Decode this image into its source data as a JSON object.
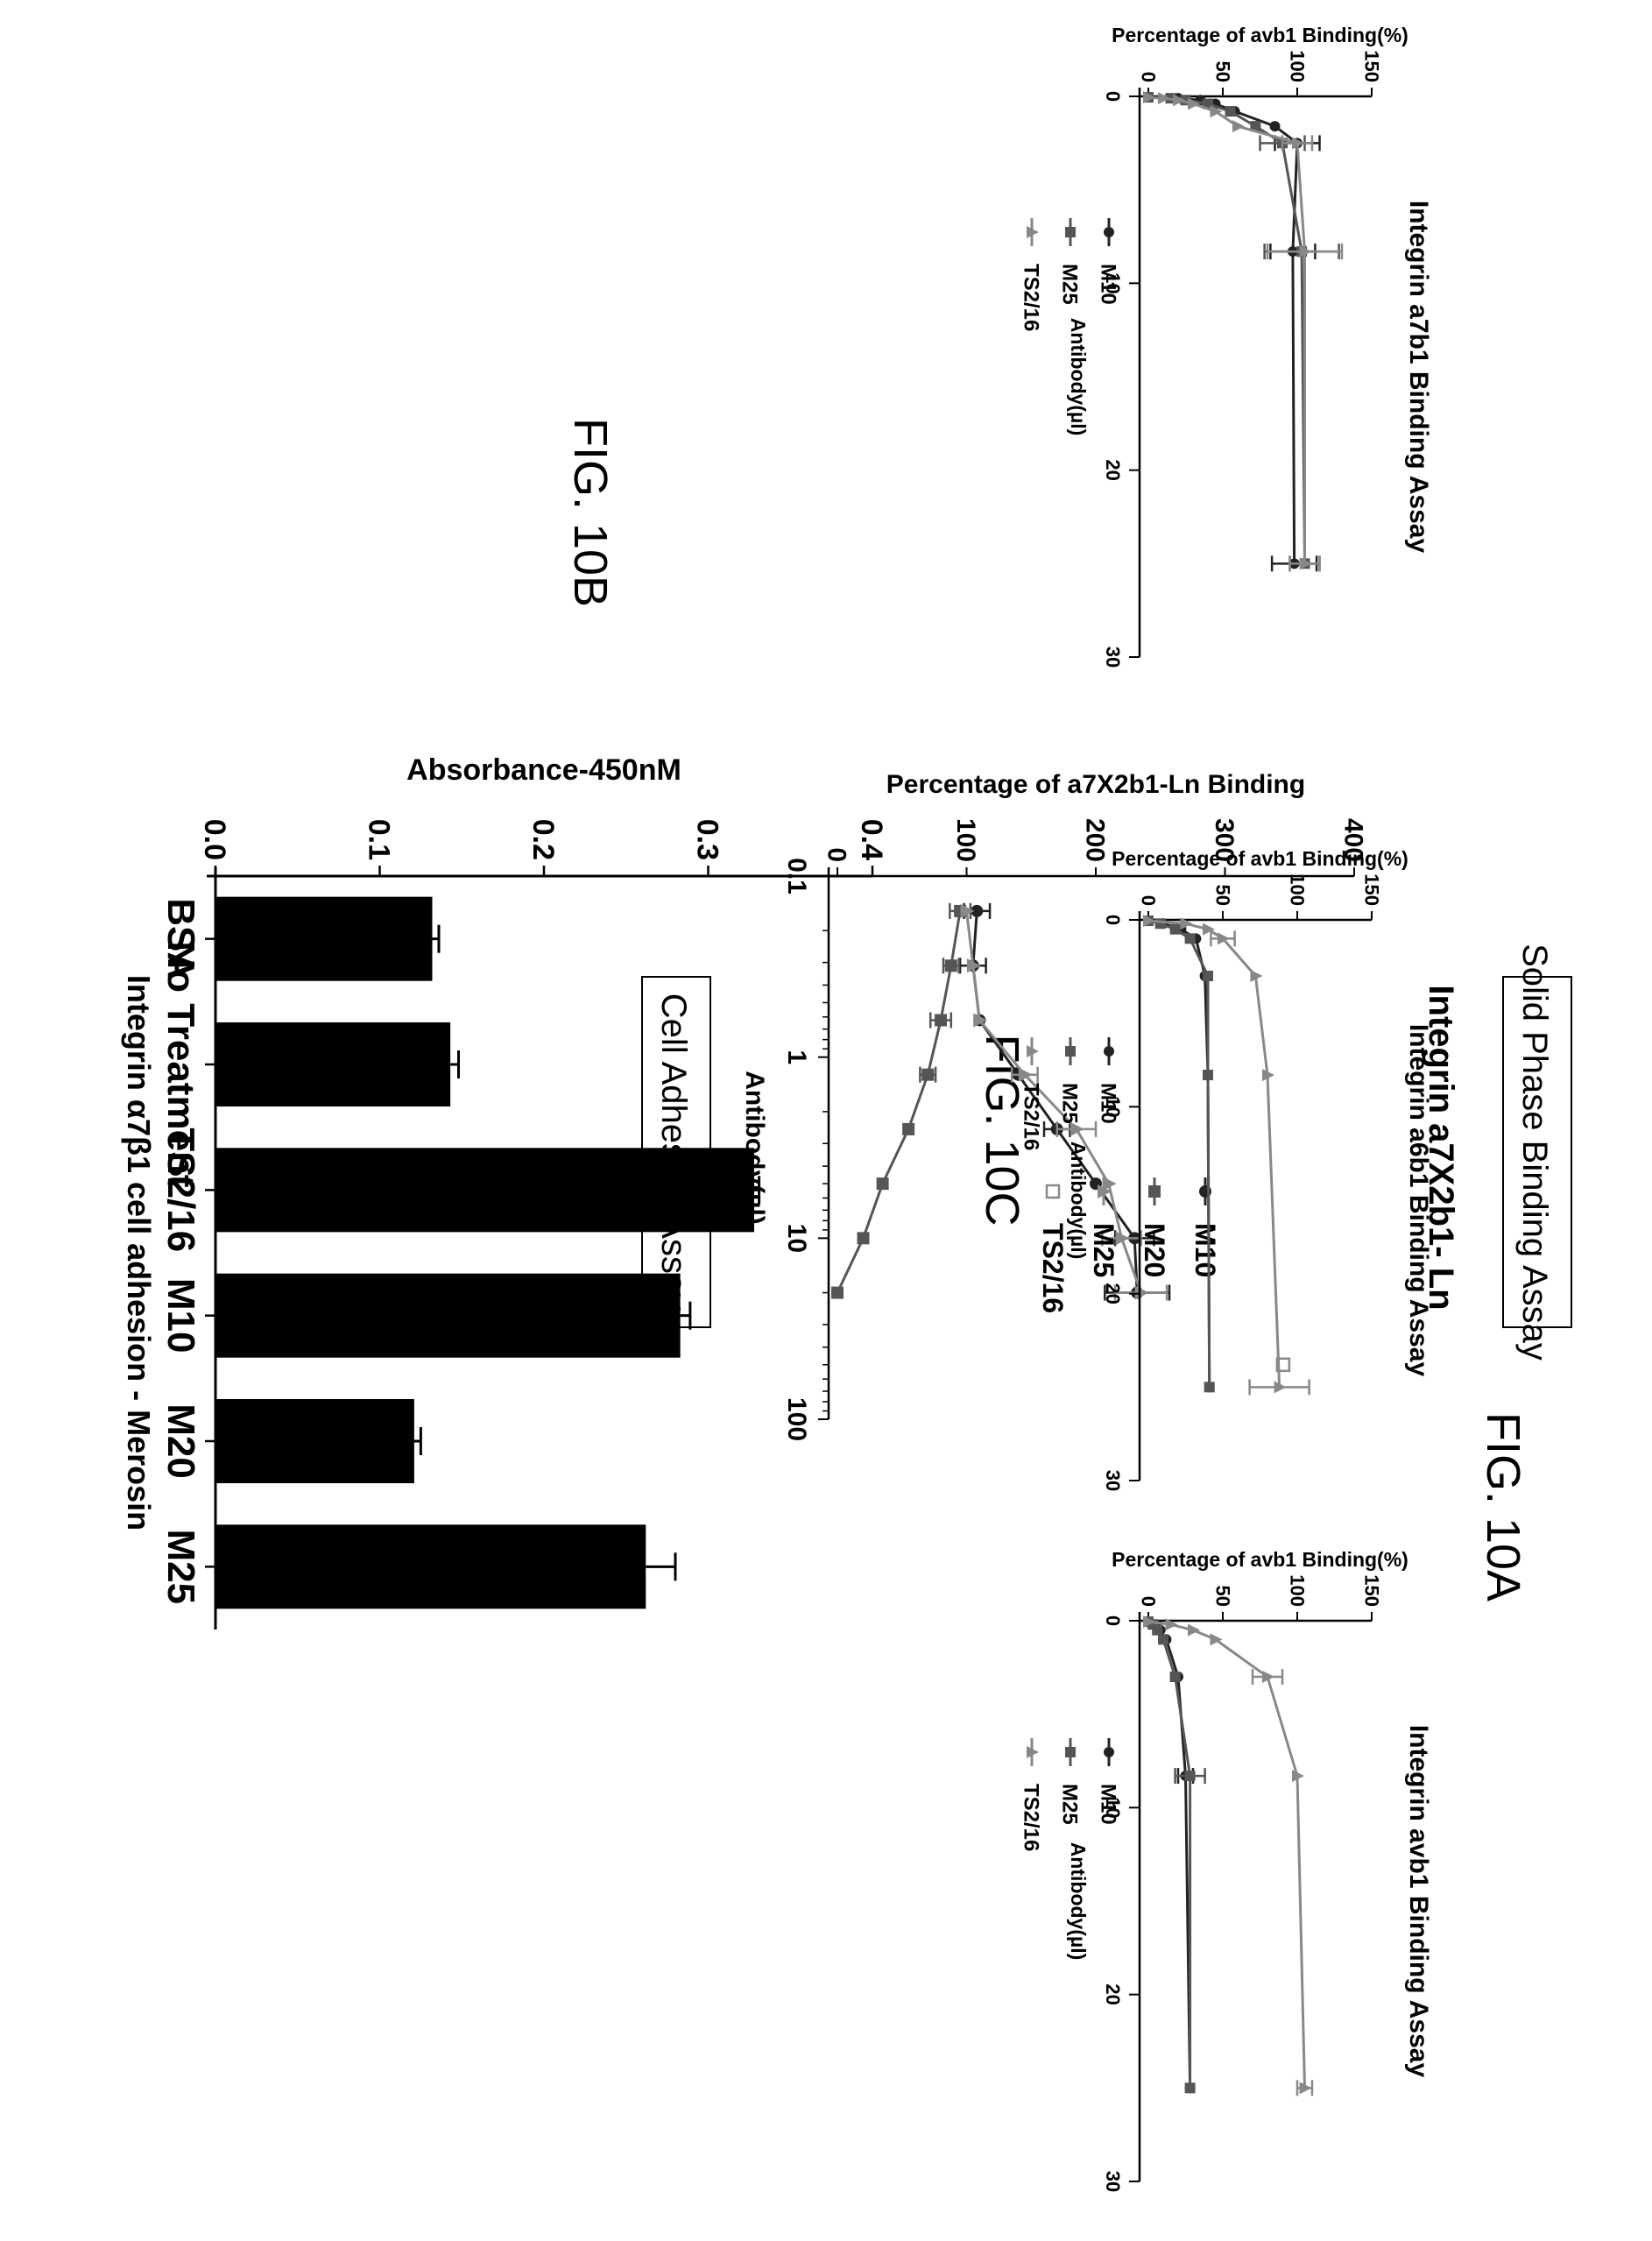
{
  "figures": {
    "fig_10a": "FIG. 10A",
    "fig_10b": "FIG. 10B",
    "fig_10c": "FIG. 10C"
  },
  "boxes": {
    "solid_phase": "Solid Phase Binding Assay",
    "cell_adhesion": "Cell Adhesion Assay"
  },
  "chart_data": [
    {
      "id": "10A",
      "type": "line",
      "title": "Integrin a7X2b1- Ln",
      "xlabel": "Antibody(µl)",
      "ylabel": "Percentage of a7X2b1-Ln Binding",
      "xscale": "log",
      "xlim": [
        0.1,
        100
      ],
      "ylim": [
        0,
        400
      ],
      "xticks": [
        "0.1",
        "1",
        "10",
        "100"
      ],
      "yticks": [
        "0",
        "100",
        "200",
        "300",
        "400"
      ],
      "legend": [
        "M10",
        "M20",
        "M25",
        "TS2/16"
      ],
      "series": [
        {
          "name": "M10",
          "color": "#222222",
          "marker": "circle",
          "x": [
            0.156,
            0.3125,
            0.625,
            1.25,
            2.5,
            5,
            10,
            20
          ],
          "y": [
            108,
            105,
            110,
            140,
            170,
            200,
            230,
            232
          ],
          "err": [
            10,
            10,
            0,
            0,
            10,
            0,
            15,
            25
          ]
        },
        {
          "name": "M20",
          "color": "#555555",
          "marker": "square",
          "x": [
            0.156,
            0.3125,
            0.625,
            1.25,
            2.5,
            5,
            10,
            20
          ],
          "y": [
            95,
            88,
            80,
            70,
            55,
            35,
            20,
            0
          ],
          "err": [
            8,
            6,
            8,
            6,
            0,
            0,
            0,
            0
          ]
        },
        {
          "name": "M25",
          "color": "#888888",
          "marker": "triangle",
          "x": [
            0.156,
            0.3125,
            0.625,
            1.25,
            2.5,
            5,
            10,
            20
          ],
          "y": [
            100,
            105,
            110,
            145,
            185,
            210,
            220,
            235
          ],
          "err": [
            0,
            0,
            0,
            10,
            15,
            0,
            15,
            20
          ]
        },
        {
          "name": "TS2/16",
          "color": "#888888",
          "marker": "open-square",
          "x": [
            50
          ],
          "y": [
            345
          ],
          "err": [
            0
          ]
        }
      ]
    },
    {
      "id": "10B",
      "type": "bar",
      "title": "Integrin α7β1 cell adhesion - Merosin",
      "ylabel": "Absorbance-450nM",
      "ylim": [
        0,
        0.4
      ],
      "yticks": [
        "0.0",
        "0.1",
        "0.2",
        "0.3",
        "0.4"
      ],
      "categories": [
        "BSA",
        "No Treatment",
        "TS2/16",
        "M10",
        "M20",
        "M25"
      ],
      "values": [
        0.132,
        0.143,
        0.328,
        0.283,
        0.121,
        0.262
      ],
      "err": [
        0.004,
        0.005,
        0.003,
        0.006,
        0.004,
        0.018
      ]
    },
    {
      "id": "10C-1",
      "type": "line",
      "title": "Integrin a7b1 Binding Assay",
      "xlabel": "Antibody(µl)",
      "ylabel": "Percentage of avb1 Binding(%)",
      "xlim": [
        0,
        30
      ],
      "ylim": [
        0,
        150
      ],
      "xticks": [
        "0",
        "10",
        "20",
        "30"
      ],
      "yticks": [
        "0",
        "50",
        "100",
        "150"
      ],
      "legend": [
        "M10",
        "M25",
        "TS2/16"
      ],
      "series": [
        {
          "name": "M10",
          "color": "#222222",
          "marker": "circle",
          "x": [
            0.05,
            0.1,
            0.2,
            0.4,
            0.8,
            1.6,
            2.5,
            8.3,
            25
          ],
          "y": [
            0,
            20,
            35,
            45,
            58,
            85,
            100,
            97,
            98
          ],
          "err": [
            0,
            0,
            0,
            0,
            0,
            0,
            15,
            15,
            15
          ]
        },
        {
          "name": "M25",
          "color": "#555555",
          "marker": "square",
          "x": [
            0.05,
            0.1,
            0.2,
            0.4,
            0.8,
            1.6,
            2.5,
            8.3,
            25
          ],
          "y": [
            0,
            15,
            25,
            40,
            55,
            72,
            90,
            103,
            105
          ],
          "err": [
            0,
            0,
            0,
            0,
            0,
            0,
            15,
            25,
            10
          ]
        },
        {
          "name": "TS2/16",
          "color": "#888888",
          "marker": "triangle",
          "x": [
            0.05,
            0.1,
            0.2,
            0.4,
            0.8,
            1.6,
            2.5,
            8.3,
            25
          ],
          "y": [
            0,
            10,
            20,
            30,
            45,
            60,
            100,
            105,
            105
          ],
          "err": [
            0,
            0,
            0,
            0,
            0,
            0,
            10,
            25,
            10
          ]
        }
      ]
    },
    {
      "id": "10C-2",
      "type": "line",
      "title": "Integrin a6b1 Binding Assay",
      "xlabel": "Antibody(µl)",
      "ylabel": "Percentage of avb1 Binding(%)",
      "xlim": [
        0,
        30
      ],
      "ylim": [
        0,
        150
      ],
      "xticks": [
        "0",
        "10",
        "20",
        "30"
      ],
      "yticks": [
        "0",
        "50",
        "100",
        "150"
      ],
      "legend": [
        "M10",
        "M25",
        "TS2/16"
      ],
      "series": [
        {
          "name": "M10",
          "color": "#222222",
          "marker": "circle",
          "x": [
            0.05,
            0.2,
            0.5,
            1,
            3,
            8.3,
            25
          ],
          "y": [
            0,
            10,
            22,
            32,
            38,
            40,
            41
          ],
          "err": [
            0,
            0,
            0,
            0,
            0,
            0,
            0
          ]
        },
        {
          "name": "M25",
          "color": "#555555",
          "marker": "square",
          "x": [
            0.05,
            0.2,
            0.5,
            1,
            3,
            8.3,
            25
          ],
          "y": [
            0,
            8,
            18,
            28,
            40,
            40,
            41
          ],
          "err": [
            0,
            0,
            0,
            0,
            0,
            0,
            0
          ]
        },
        {
          "name": "TS2/16",
          "color": "#888888",
          "marker": "triangle",
          "x": [
            0.05,
            0.2,
            0.5,
            1,
            3,
            8.3,
            25
          ],
          "y": [
            0,
            25,
            40,
            50,
            72,
            80,
            88
          ],
          "err": [
            0,
            0,
            0,
            8,
            0,
            0,
            20
          ]
        }
      ]
    },
    {
      "id": "10C-3",
      "type": "line",
      "title": "Integrin avb1 Binding Assay",
      "xlabel": "Antibody(µl)",
      "ylabel": "Percentage of avb1 Binding(%)",
      "xlim": [
        0,
        30
      ],
      "ylim": [
        0,
        150
      ],
      "xticks": [
        "0",
        "10",
        "20",
        "30"
      ],
      "yticks": [
        "0",
        "50",
        "100",
        "150"
      ],
      "legend": [
        "M10",
        "M25",
        "TS2/16"
      ],
      "series": [
        {
          "name": "M10",
          "color": "#222222",
          "marker": "circle",
          "x": [
            0.05,
            0.2,
            0.5,
            1,
            3,
            8.3,
            25
          ],
          "y": [
            0,
            5,
            8,
            12,
            20,
            25,
            28
          ],
          "err": [
            0,
            0,
            0,
            0,
            0,
            5,
            0
          ]
        },
        {
          "name": "M25",
          "color": "#555555",
          "marker": "square",
          "x": [
            0.05,
            0.2,
            0.5,
            1,
            3,
            8.3,
            25
          ],
          "y": [
            0,
            3,
            6,
            10,
            18,
            28,
            28
          ],
          "err": [
            0,
            0,
            0,
            0,
            0,
            10,
            0
          ]
        },
        {
          "name": "TS2/16",
          "color": "#888888",
          "marker": "triangle",
          "x": [
            0.05,
            0.2,
            0.5,
            1,
            3,
            8.3,
            25
          ],
          "y": [
            0,
            15,
            30,
            45,
            80,
            100,
            105
          ],
          "err": [
            0,
            0,
            0,
            0,
            10,
            0,
            5
          ]
        }
      ]
    }
  ]
}
